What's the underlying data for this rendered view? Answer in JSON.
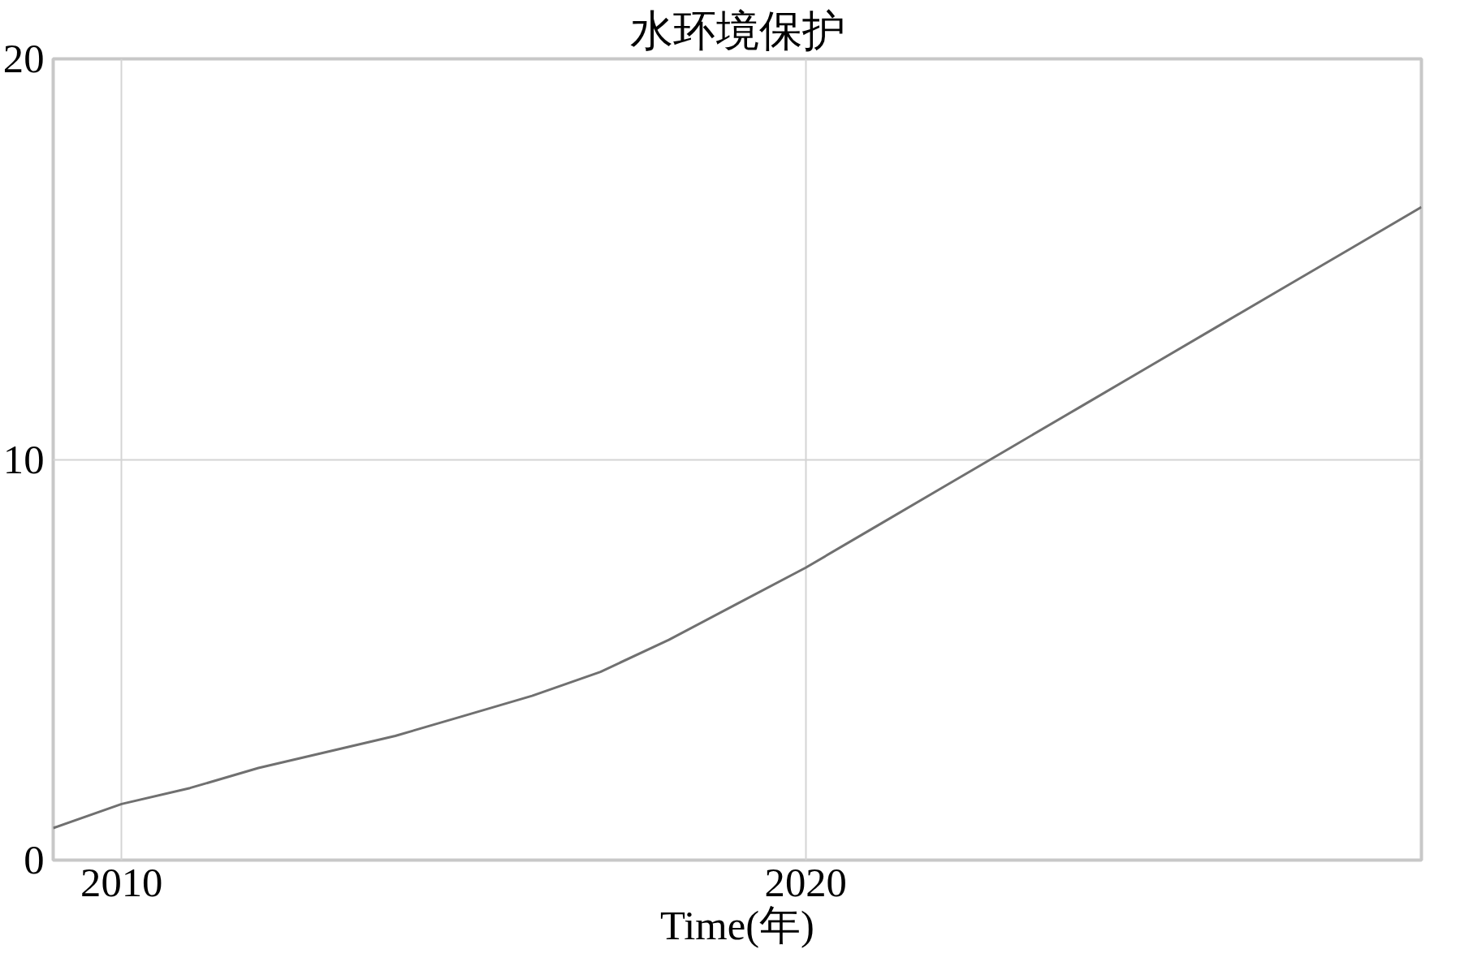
{
  "chart_data": {
    "type": "line",
    "title": "水环境保护",
    "xlabel": "Time(年)",
    "x": [
      2009,
      2010,
      2011,
      2012,
      2013,
      2014,
      2015,
      2016,
      2017,
      2018,
      2019,
      2020,
      2021,
      2022,
      2023,
      2024,
      2025,
      2026,
      2027,
      2028,
      2029
    ],
    "series": [
      {
        "color": "#707070",
        "values": [
          0.8,
          1.4,
          1.8,
          2.3,
          2.7,
          3.1,
          3.6,
          4.1,
          4.7,
          5.5,
          6.4,
          7.3,
          8.3,
          9.3,
          10.3,
          11.3,
          12.3,
          13.3,
          14.3,
          15.3,
          16.3
        ]
      }
    ],
    "xlim": [
      2009,
      2029
    ],
    "xticks": [
      2010,
      2020
    ],
    "ylim": [
      0,
      20
    ],
    "yticks": [
      0,
      10,
      20
    ],
    "grid": true,
    "marker": "none",
    "line_style": "solid"
  }
}
